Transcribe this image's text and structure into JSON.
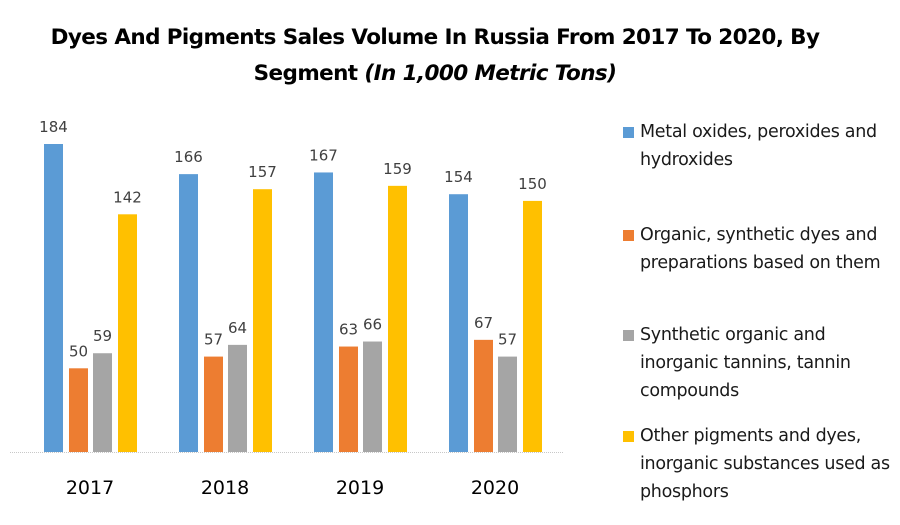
{
  "chart_data": {
    "type": "bar",
    "title": "Dyes And Pigments Sales Volume In Russia From 2017 To 2020, By Segment",
    "title_main": "Dyes And Pigments Sales Volume In Russia From 2017 To 2020, By Segment",
    "title_units": "(In 1,000 Metric Tons)",
    "xlabel": "",
    "ylabel": "",
    "ylim": [
      0,
      200
    ],
    "grid": false,
    "legend_position": "right",
    "categories": [
      "2017",
      "2018",
      "2019",
      "2020"
    ],
    "series": [
      {
        "name": "Metal oxides, peroxides and hydroxides",
        "color": "#5B9BD5",
        "values": [
          184,
          166,
          167,
          154
        ]
      },
      {
        "name": "Organic, synthetic dyes and preparations based on them",
        "color": "#ED7D31",
        "values": [
          50,
          57,
          63,
          67
        ]
      },
      {
        "name": "Synthetic organic and inorganic tannins, tannin compounds",
        "color": "#A5A5A5",
        "values": [
          59,
          64,
          66,
          57
        ]
      },
      {
        "name": "Other pigments and dyes, inorganic substances used as phosphors",
        "color": "#FFC000",
        "values": [
          142,
          157,
          159,
          150
        ]
      }
    ]
  }
}
